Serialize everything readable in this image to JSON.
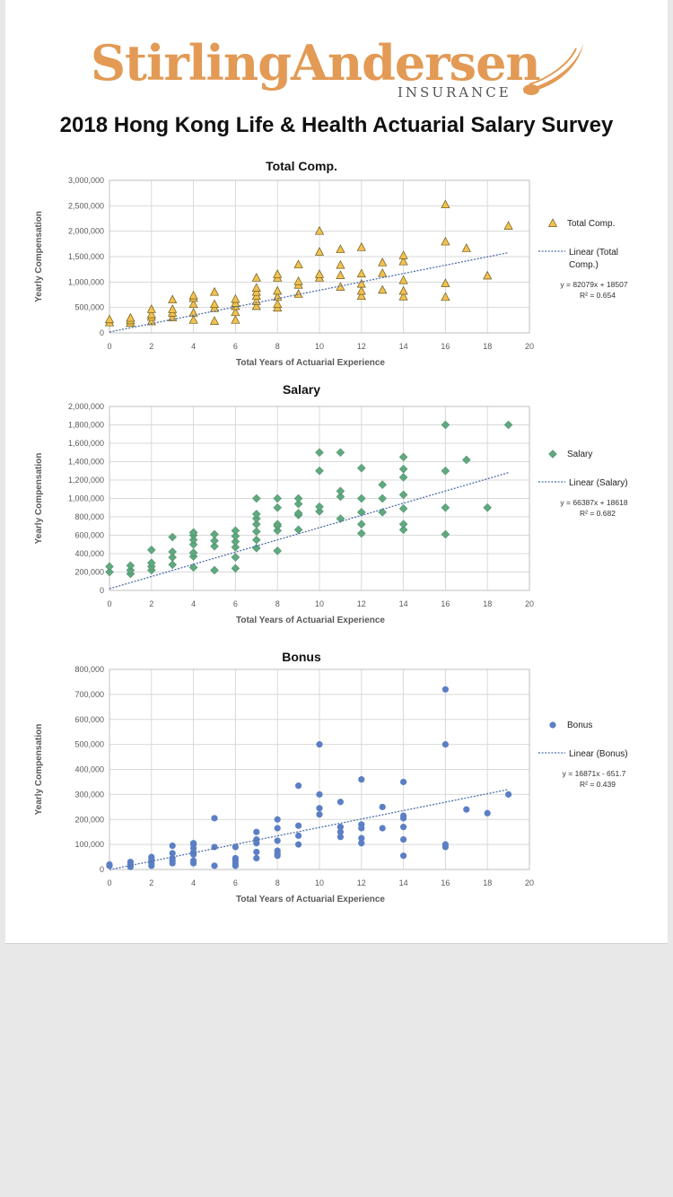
{
  "logo": {
    "word": "StirlingAndersen",
    "sub": "INSURANCE"
  },
  "doc_title": "2018 Hong Kong Life & Health Actuarial Salary Survey",
  "chart_data": [
    {
      "type": "scatter",
      "title": "Total Comp.",
      "xlabel": "Total Years of Actuarial Experience",
      "ylabel": "Yearly Compensation",
      "xlim": [
        0,
        20
      ],
      "ylim": [
        0,
        3000000
      ],
      "xticks": [
        "0",
        "2",
        "4",
        "6",
        "8",
        "10",
        "12",
        "14",
        "16",
        "18",
        "20"
      ],
      "yticks": [
        "0",
        "500,000",
        "1,000,000",
        "1,500,000",
        "2,000,000",
        "2,500,000",
        "3,000,000"
      ],
      "legend": [
        "Total Comp.",
        "Linear (Total Comp.)"
      ],
      "equation": "y = 82079x + 18507",
      "r2": "R² = 0.654",
      "trend": [
        [
          0,
          18507
        ],
        [
          19,
          1578008
        ]
      ],
      "marker": "triangle",
      "color": "#f2c14e",
      "points": [
        [
          0,
          200000
        ],
        [
          0,
          260000
        ],
        [
          1,
          190000
        ],
        [
          1,
          240000
        ],
        [
          1,
          290000
        ],
        [
          2,
          220000
        ],
        [
          2,
          310000
        ],
        [
          2,
          360000
        ],
        [
          2,
          460000
        ],
        [
          3,
          300000
        ],
        [
          3,
          390000
        ],
        [
          3,
          460000
        ],
        [
          3,
          650000
        ],
        [
          4,
          250000
        ],
        [
          4,
          390000
        ],
        [
          4,
          560000
        ],
        [
          4,
          680000
        ],
        [
          4,
          730000
        ],
        [
          5,
          230000
        ],
        [
          5,
          480000
        ],
        [
          5,
          560000
        ],
        [
          5,
          800000
        ],
        [
          6,
          250000
        ],
        [
          6,
          400000
        ],
        [
          6,
          520000
        ],
        [
          6,
          580000
        ],
        [
          6,
          660000
        ],
        [
          7,
          520000
        ],
        [
          7,
          620000
        ],
        [
          7,
          720000
        ],
        [
          7,
          800000
        ],
        [
          7,
          880000
        ],
        [
          7,
          1080000
        ],
        [
          8,
          490000
        ],
        [
          8,
          560000
        ],
        [
          8,
          700000
        ],
        [
          8,
          820000
        ],
        [
          8,
          1080000
        ],
        [
          8,
          1150000
        ],
        [
          9,
          760000
        ],
        [
          9,
          940000
        ],
        [
          9,
          1010000
        ],
        [
          9,
          1340000
        ],
        [
          10,
          1080000
        ],
        [
          10,
          1150000
        ],
        [
          10,
          1590000
        ],
        [
          10,
          2000000
        ],
        [
          11,
          900000
        ],
        [
          11,
          1130000
        ],
        [
          11,
          1330000
        ],
        [
          11,
          1640000
        ],
        [
          12,
          720000
        ],
        [
          12,
          820000
        ],
        [
          12,
          960000
        ],
        [
          12,
          1160000
        ],
        [
          12,
          1680000
        ],
        [
          13,
          840000
        ],
        [
          13,
          1170000
        ],
        [
          13,
          1380000
        ],
        [
          14,
          710000
        ],
        [
          14,
          820000
        ],
        [
          14,
          1030000
        ],
        [
          14,
          1400000
        ],
        [
          14,
          1520000
        ],
        [
          16,
          700000
        ],
        [
          16,
          970000
        ],
        [
          16,
          1790000
        ],
        [
          16,
          2520000
        ],
        [
          17,
          1660000
        ],
        [
          18,
          1120000
        ],
        [
          19,
          2100000
        ]
      ]
    },
    {
      "type": "scatter",
      "title": "Salary",
      "xlabel": "Total Years of Actuarial Experience",
      "ylabel": "Yearly Compensation",
      "xlim": [
        0,
        20
      ],
      "ylim": [
        0,
        2000000
      ],
      "xticks": [
        "0",
        "2",
        "4",
        "6",
        "8",
        "10",
        "12",
        "14",
        "16",
        "18",
        "20"
      ],
      "yticks": [
        "0",
        "200,000",
        "400,000",
        "600,000",
        "800,000",
        "1,000,000",
        "1,200,000",
        "1,400,000",
        "1,600,000",
        "1,800,000",
        "2,000,000"
      ],
      "legend": [
        "Salary",
        "Linear (Salary)"
      ],
      "equation": "y = 66387x + 18618",
      "r2": "R² = 0.682",
      "trend": [
        [
          0,
          18618
        ],
        [
          19,
          1279971
        ]
      ],
      "marker": "diamond",
      "color": "#5fa97f",
      "points": [
        [
          0,
          200000
        ],
        [
          0,
          260000
        ],
        [
          1,
          180000
        ],
        [
          1,
          220000
        ],
        [
          1,
          270000
        ],
        [
          2,
          220000
        ],
        [
          2,
          260000
        ],
        [
          2,
          300000
        ],
        [
          2,
          440000
        ],
        [
          3,
          280000
        ],
        [
          3,
          360000
        ],
        [
          3,
          420000
        ],
        [
          3,
          580000
        ],
        [
          4,
          250000
        ],
        [
          4,
          370000
        ],
        [
          4,
          410000
        ],
        [
          4,
          500000
        ],
        [
          4,
          550000
        ],
        [
          4,
          600000
        ],
        [
          4,
          630000
        ],
        [
          5,
          220000
        ],
        [
          5,
          480000
        ],
        [
          5,
          540000
        ],
        [
          5,
          610000
        ],
        [
          6,
          240000
        ],
        [
          6,
          360000
        ],
        [
          6,
          470000
        ],
        [
          6,
          530000
        ],
        [
          6,
          590000
        ],
        [
          6,
          650000
        ],
        [
          7,
          460000
        ],
        [
          7,
          550000
        ],
        [
          7,
          640000
        ],
        [
          7,
          720000
        ],
        [
          7,
          780000
        ],
        [
          7,
          830000
        ],
        [
          7,
          1000000
        ],
        [
          8,
          430000
        ],
        [
          8,
          650000
        ],
        [
          8,
          700000
        ],
        [
          8,
          720000
        ],
        [
          8,
          900000
        ],
        [
          8,
          1000000
        ],
        [
          9,
          660000
        ],
        [
          9,
          820000
        ],
        [
          9,
          840000
        ],
        [
          9,
          940000
        ],
        [
          9,
          1000000
        ],
        [
          10,
          860000
        ],
        [
          10,
          910000
        ],
        [
          10,
          1300000
        ],
        [
          10,
          1500000
        ],
        [
          11,
          780000
        ],
        [
          11,
          1020000
        ],
        [
          11,
          1080000
        ],
        [
          11,
          1500000
        ],
        [
          12,
          620000
        ],
        [
          12,
          720000
        ],
        [
          12,
          850000
        ],
        [
          12,
          1000000
        ],
        [
          12,
          1330000
        ],
        [
          13,
          850000
        ],
        [
          13,
          1000000
        ],
        [
          13,
          1150000
        ],
        [
          14,
          660000
        ],
        [
          14,
          720000
        ],
        [
          14,
          890000
        ],
        [
          14,
          1040000
        ],
        [
          14,
          1230000
        ],
        [
          14,
          1320000
        ],
        [
          14,
          1450000
        ],
        [
          16,
          610000
        ],
        [
          16,
          900000
        ],
        [
          16,
          1300000
        ],
        [
          16,
          1800000
        ],
        [
          17,
          1420000
        ],
        [
          18,
          900000
        ],
        [
          19,
          1800000
        ]
      ]
    },
    {
      "type": "scatter",
      "title": "Bonus",
      "xlabel": "Total Years of Actuarial Experience",
      "ylabel": "Yearly Compensation",
      "xlim": [
        0,
        20
      ],
      "ylim": [
        0,
        800000
      ],
      "xticks": [
        "0",
        "2",
        "4",
        "6",
        "8",
        "10",
        "12",
        "14",
        "16",
        "18",
        "20"
      ],
      "yticks": [
        "0",
        "100,000",
        "200,000",
        "300,000",
        "400,000",
        "500,000",
        "600,000",
        "700,000",
        "800,000"
      ],
      "legend": [
        "Bonus",
        "Linear (Bonus)"
      ],
      "equation": "y = 16871x - 651.7",
      "r2": "R² = 0.439",
      "trend": [
        [
          0,
          -651.7
        ],
        [
          19,
          319897
        ]
      ],
      "marker": "circle",
      "color": "#5b7fc4",
      "points": [
        [
          0,
          15000
        ],
        [
          0,
          20000
        ],
        [
          1,
          10000
        ],
        [
          1,
          20000
        ],
        [
          1,
          30000
        ],
        [
          2,
          15000
        ],
        [
          2,
          25000
        ],
        [
          2,
          40000
        ],
        [
          2,
          50000
        ],
        [
          3,
          25000
        ],
        [
          3,
          35000
        ],
        [
          3,
          45000
        ],
        [
          3,
          65000
        ],
        [
          3,
          95000
        ],
        [
          4,
          25000
        ],
        [
          4,
          35000
        ],
        [
          4,
          60000
        ],
        [
          4,
          70000
        ],
        [
          4,
          85000
        ],
        [
          4,
          100000
        ],
        [
          4,
          105000
        ],
        [
          5,
          15000
        ],
        [
          5,
          90000
        ],
        [
          5,
          205000
        ],
        [
          6,
          15000
        ],
        [
          6,
          25000
        ],
        [
          6,
          35000
        ],
        [
          6,
          45000
        ],
        [
          6,
          90000
        ],
        [
          7,
          45000
        ],
        [
          7,
          70000
        ],
        [
          7,
          105000
        ],
        [
          7,
          120000
        ],
        [
          7,
          150000
        ],
        [
          8,
          55000
        ],
        [
          8,
          65000
        ],
        [
          8,
          75000
        ],
        [
          8,
          115000
        ],
        [
          8,
          165000
        ],
        [
          8,
          200000
        ],
        [
          9,
          100000
        ],
        [
          9,
          135000
        ],
        [
          9,
          175000
        ],
        [
          9,
          335000
        ],
        [
          10,
          220000
        ],
        [
          10,
          245000
        ],
        [
          10,
          300000
        ],
        [
          10,
          500000
        ],
        [
          11,
          130000
        ],
        [
          11,
          150000
        ],
        [
          11,
          170000
        ],
        [
          11,
          270000
        ],
        [
          12,
          105000
        ],
        [
          12,
          125000
        ],
        [
          12,
          165000
        ],
        [
          12,
          180000
        ],
        [
          12,
          360000
        ],
        [
          13,
          165000
        ],
        [
          13,
          250000
        ],
        [
          14,
          55000
        ],
        [
          14,
          120000
        ],
        [
          14,
          170000
        ],
        [
          14,
          205000
        ],
        [
          14,
          215000
        ],
        [
          14,
          350000
        ],
        [
          16,
          90000
        ],
        [
          16,
          100000
        ],
        [
          16,
          500000
        ],
        [
          16,
          720000
        ],
        [
          17,
          240000
        ],
        [
          18,
          225000
        ],
        [
          19,
          300000
        ]
      ]
    }
  ]
}
